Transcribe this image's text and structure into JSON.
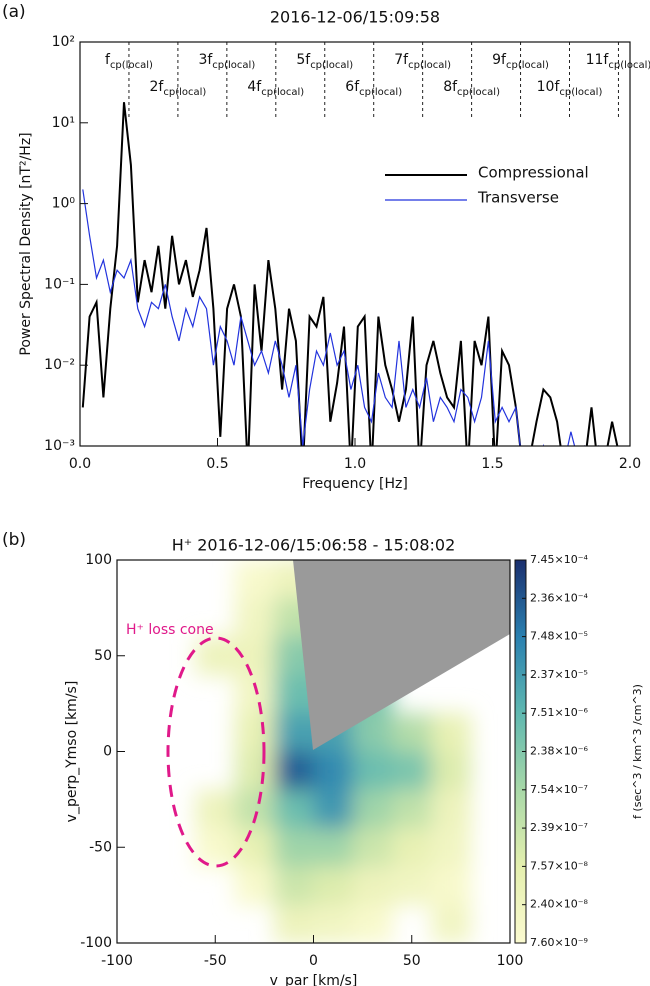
{
  "chart_data": [
    {
      "type": "line",
      "panel_label": "(a)",
      "title": "2016-12-06/15:09:58",
      "xlabel": "Frequency [Hz]",
      "ylabel": "Power Spectral Density [nT²/Hz]",
      "xlim": [
        0,
        2
      ],
      "xticks": [
        {
          "value": 0,
          "label": "0.0"
        },
        0.5,
        {
          "value": 1,
          "label": "1.0"
        },
        1.5,
        {
          "value": 2,
          "label": "2.0"
        }
      ],
      "ylim": [
        0.001,
        100
      ],
      "yscale": "log",
      "yticks": [
        {
          "value": 0.001,
          "label": "10⁻³"
        },
        {
          "value": 0.01,
          "label": "10⁻²"
        },
        {
          "value": 0.1,
          "label": "10⁻¹"
        },
        {
          "value": 1,
          "label": "10⁰"
        },
        {
          "value": 10,
          "label": "10¹"
        },
        {
          "value": 100,
          "label": "10²"
        }
      ],
      "legend": "upper right",
      "harmonics": {
        "x": [
          0.178,
          0.356,
          0.534,
          0.712,
          0.89,
          1.068,
          1.246,
          1.424,
          1.602,
          1.78,
          1.958
        ],
        "labels": [
          "f",
          "2f",
          "3f",
          "4f",
          "5f",
          "6f",
          "7f",
          "8f",
          "9f",
          "10f",
          "11f"
        ],
        "subscript": "cp(local)"
      },
      "x": [
        0.01,
        0.035,
        0.06,
        0.085,
        0.11,
        0.135,
        0.16,
        0.185,
        0.21,
        0.235,
        0.26,
        0.285,
        0.31,
        0.335,
        0.36,
        0.385,
        0.41,
        0.435,
        0.46,
        0.485,
        0.51,
        0.535,
        0.56,
        0.585,
        0.61,
        0.635,
        0.66,
        0.685,
        0.71,
        0.735,
        0.76,
        0.785,
        0.81,
        0.835,
        0.86,
        0.885,
        0.91,
        0.935,
        0.96,
        0.985,
        1.01,
        1.035,
        1.06,
        1.085,
        1.11,
        1.135,
        1.16,
        1.185,
        1.21,
        1.235,
        1.26,
        1.285,
        1.31,
        1.335,
        1.36,
        1.385,
        1.41,
        1.435,
        1.46,
        1.485,
        1.51,
        1.535,
        1.56,
        1.585,
        1.61,
        1.635,
        1.66,
        1.685,
        1.71,
        1.735,
        1.76,
        1.785,
        1.81,
        1.835,
        1.86,
        1.885,
        1.91,
        1.935,
        1.96,
        1.985
      ],
      "series": [
        {
          "name": "Compressional",
          "color": "#000000",
          "values": [
            0.003,
            0.04,
            0.06,
            0.004,
            0.05,
            0.3,
            18,
            3,
            0.06,
            0.2,
            0.08,
            0.3,
            0.05,
            0.4,
            0.1,
            0.2,
            0.07,
            0.15,
            0.5,
            0.05,
            0.0013,
            0.05,
            0.1,
            0.04,
            0.0005,
            0.1,
            0.015,
            0.2,
            0.05,
            0.005,
            0.05,
            0.02,
            0.0005,
            0.04,
            0.03,
            0.07,
            0.002,
            0.006,
            0.03,
            0.0005,
            0.03,
            0.04,
            0.0005,
            0.04,
            0.01,
            0.005,
            0.002,
            0.005,
            0.04,
            0.0005,
            0.01,
            0.02,
            0.008,
            0.004,
            0.003,
            0.02,
            0.0005,
            0.02,
            0.01,
            0.04,
            0.0005,
            0.015,
            0.01,
            0.003,
            0.0005,
            0.0007,
            0.002,
            0.005,
            0.004,
            0.002,
            0.0005,
            0.0008,
            0.0005,
            0.0006,
            0.003,
            0.0005,
            0.0007,
            0.002,
            0.0008,
            0.0005
          ]
        },
        {
          "name": "Transverse",
          "color": "#2233dd",
          "values": [
            1.5,
            0.4,
            0.12,
            0.2,
            0.08,
            0.15,
            0.12,
            0.2,
            0.05,
            0.03,
            0.06,
            0.05,
            0.1,
            0.04,
            0.02,
            0.05,
            0.03,
            0.07,
            0.05,
            0.01,
            0.03,
            0.02,
            0.01,
            0.04,
            0.02,
            0.01,
            0.015,
            0.008,
            0.02,
            0.01,
            0.004,
            0.01,
            0.001,
            0.005,
            0.015,
            0.01,
            0.025,
            0.01,
            0.015,
            0.005,
            0.01,
            0.003,
            0.002,
            0.008,
            0.004,
            0.003,
            0.02,
            0.003,
            0.005,
            0.003,
            0.007,
            0.002,
            0.004,
            0.003,
            0.002,
            0.005,
            0.004,
            0.002,
            0.004,
            0.02,
            0.002,
            0.003,
            0.002,
            0.003,
            0.0005,
            0.0008,
            0.0005,
            0.001,
            0.0005,
            0.0008,
            0.0006,
            0.0015,
            0.0007,
            0.001,
            0.0008,
            0.001,
            0.0007,
            0.0009,
            0.0006,
            0.001
          ]
        }
      ]
    },
    {
      "type": "heatmap",
      "panel_label": "(b)",
      "title": "H⁺ 2016-12-06/15:06:58 - 15:08:02",
      "xlabel": "v_par [km/s]",
      "ylabel": "v_perp_Ymso [km/s]",
      "xlim": [
        -100,
        100
      ],
      "xticks": [
        -100,
        -50,
        0,
        50,
        100
      ],
      "ylim": [
        -100,
        100
      ],
      "yticks": [
        -100,
        -50,
        0,
        50,
        100
      ],
      "x": [
        -90,
        -70,
        -50,
        -30,
        -10,
        10,
        30,
        50,
        70,
        90
      ],
      "y": [
        90,
        70,
        50,
        30,
        10,
        -10,
        -30,
        -50,
        -70,
        -90
      ],
      "z": [
        [
          null,
          null,
          null,
          1e-08,
          3e-08,
          null,
          null,
          null,
          null,
          null
        ],
        [
          null,
          null,
          null,
          2e-08,
          3e-07,
          5e-07,
          null,
          null,
          null,
          null
        ],
        [
          null,
          null,
          3e-08,
          3e-08,
          2e-06,
          3e-06,
          null,
          null,
          null,
          null
        ],
        [
          null,
          null,
          null,
          2e-08,
          5e-06,
          5e-06,
          3e-06,
          null,
          null,
          null
        ],
        [
          null,
          null,
          null,
          5e-08,
          2e-05,
          2e-05,
          2e-06,
          5e-07,
          5e-08,
          null
        ],
        [
          null,
          null,
          null,
          1e-07,
          0.0002,
          5e-05,
          5e-06,
          3e-06,
          1e-07,
          null
        ],
        [
          null,
          null,
          3e-08,
          3e-07,
          5e-06,
          3e-05,
          1e-06,
          3e-07,
          3e-08,
          null
        ],
        [
          null,
          null,
          1e-08,
          5e-08,
          1e-06,
          1e-06,
          2e-07,
          5e-08,
          2e-08,
          null
        ],
        [
          null,
          null,
          null,
          1e-08,
          2e-07,
          1e-07,
          3e-08,
          2e-08,
          1e-08,
          null
        ],
        [
          null,
          null,
          null,
          null,
          3e-08,
          2e-08,
          1e-08,
          null,
          2e-08,
          null
        ]
      ],
      "zscale": "log",
      "zlim": [
        7.6e-09,
        0.000745
      ],
      "zticks": [
        {
          "value": 7.6e-09,
          "label": "7.60×10⁻⁹"
        },
        {
          "value": 2.4e-08,
          "label": "2.40×10⁻⁸"
        },
        {
          "value": 7.57e-08,
          "label": "7.57×10⁻⁸"
        },
        {
          "value": 2.39e-07,
          "label": "2.39×10⁻⁷"
        },
        {
          "value": 7.54e-07,
          "label": "7.54×10⁻⁷"
        },
        {
          "value": 2.38e-06,
          "label": "2.38×10⁻⁶"
        },
        {
          "value": 7.51e-06,
          "label": "7.51×10⁻⁶"
        },
        {
          "value": 2.37e-05,
          "label": "2.37×10⁻⁵"
        },
        {
          "value": 7.48e-05,
          "label": "7.48×10⁻⁵"
        },
        {
          "value": 0.000236,
          "label": "2.36×10⁻⁴"
        },
        {
          "value": 0.000745,
          "label": "7.45×10⁻⁴"
        }
      ],
      "colorbar_label": "f (sec^3 / km^3 /cm^3)",
      "annotation": "H⁺ loss cone"
    }
  ]
}
